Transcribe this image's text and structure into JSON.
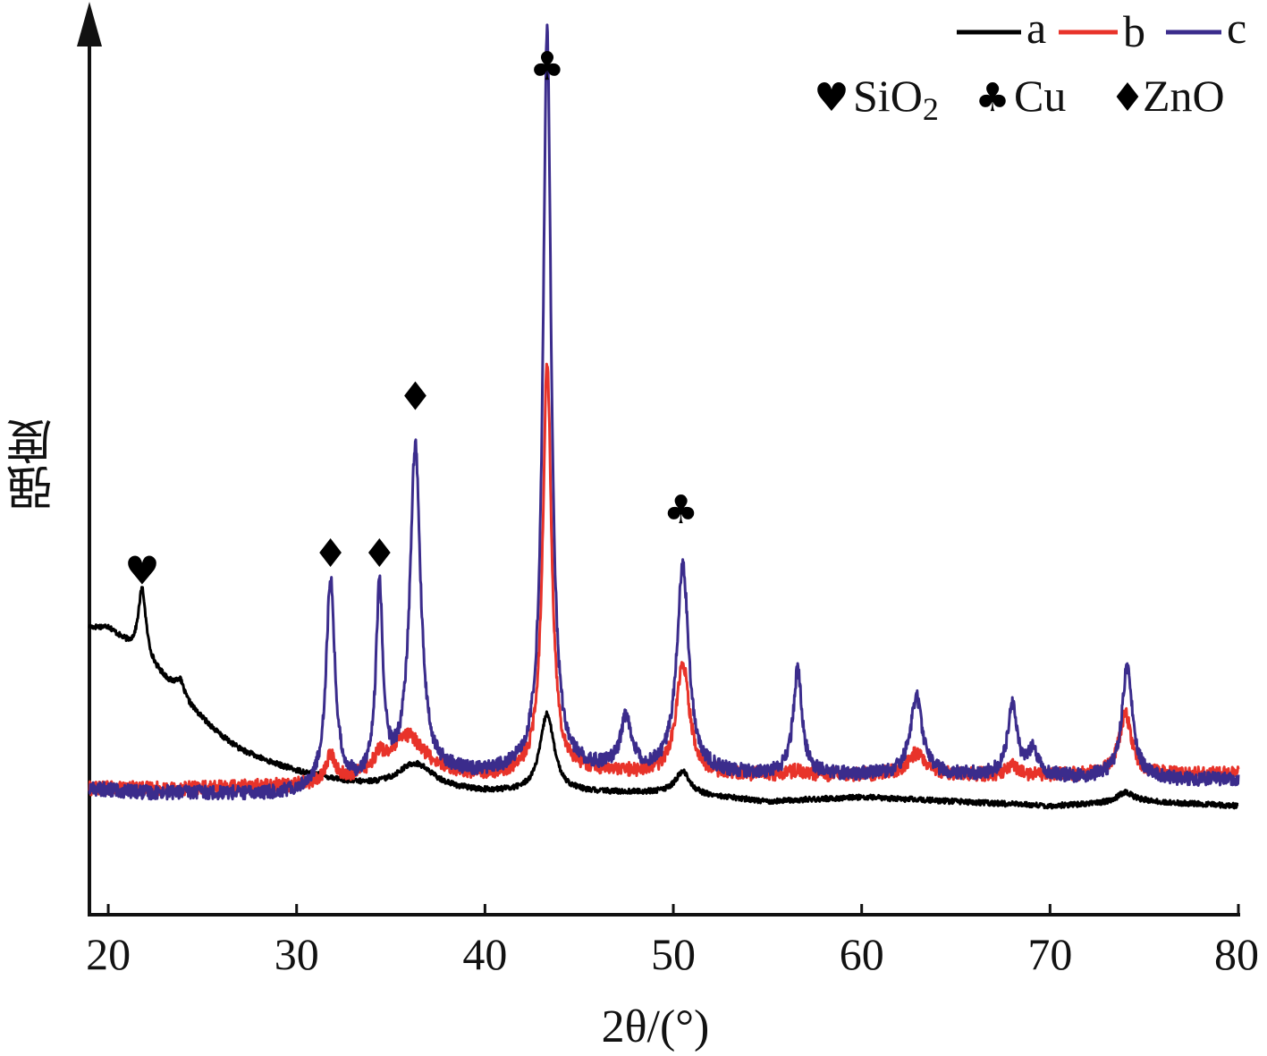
{
  "chart_data": {
    "type": "line",
    "xlabel": "2θ/(°)",
    "ylabel": "强度",
    "xlim": [
      19,
      80
    ],
    "x_ticks": [
      20,
      30,
      40,
      50,
      60,
      70,
      80
    ],
    "tick_labels": [
      "20",
      "30",
      "40",
      "50",
      "60",
      "70",
      "80"
    ],
    "y_ticks_shown": false,
    "grid": false,
    "legend_position": "top-right",
    "legend": {
      "series": [
        {
          "name": "a",
          "color": "#000000"
        },
        {
          "name": "b",
          "color": "#e8332a"
        },
        {
          "name": "c",
          "color": "#3b2c8c"
        }
      ],
      "phases": [
        {
          "symbol": "♥",
          "icon": "heart",
          "label": "SiO",
          "subscript": "2"
        },
        {
          "symbol": "♣",
          "icon": "club",
          "label": "Cu"
        },
        {
          "symbol": "♦",
          "icon": "diamond",
          "label": "ZnO"
        }
      ]
    },
    "peak_markers": [
      {
        "x": 21.8,
        "symbol": "♥",
        "phase": "SiO2",
        "level": 0.38
      },
      {
        "x": 31.8,
        "symbol": "♦",
        "phase": "ZnO",
        "level": 0.4
      },
      {
        "x": 34.4,
        "symbol": "♦",
        "phase": "ZnO",
        "level": 0.4
      },
      {
        "x": 36.3,
        "symbol": "♦",
        "phase": "ZnO",
        "level": 0.58
      },
      {
        "x": 43.3,
        "symbol": "♣",
        "phase": "Cu",
        "level": 0.96
      },
      {
        "x": 50.4,
        "symbol": "♣",
        "phase": "Cu",
        "level": 0.45
      }
    ],
    "series": [
      {
        "name": "a",
        "color": "#000000",
        "baseline": [
          [
            19,
            0.33
          ],
          [
            20,
            0.33
          ],
          [
            21,
            0.31
          ],
          [
            22,
            0.29
          ],
          [
            23,
            0.27
          ],
          [
            24,
            0.245
          ],
          [
            25,
            0.225
          ],
          [
            26,
            0.205
          ],
          [
            27,
            0.19
          ],
          [
            28,
            0.18
          ],
          [
            29,
            0.172
          ],
          [
            30,
            0.165
          ],
          [
            31,
            0.16
          ],
          [
            33,
            0.15
          ],
          [
            35,
            0.145
          ],
          [
            40,
            0.14
          ],
          [
            45,
            0.14
          ],
          [
            50,
            0.14
          ],
          [
            55,
            0.13
          ],
          [
            60,
            0.135
          ],
          [
            65,
            0.13
          ],
          [
            70,
            0.125
          ],
          [
            75,
            0.13
          ],
          [
            80,
            0.125
          ]
        ],
        "peaks": [
          [
            21.8,
            0.08,
            0.25
          ],
          [
            23.8,
            0.02,
            0.3
          ],
          [
            36.3,
            0.03,
            1.2
          ],
          [
            43.3,
            0.09,
            0.45
          ],
          [
            50.5,
            0.025,
            0.45
          ],
          [
            74.0,
            0.012,
            0.5
          ]
        ],
        "noise": 0.003
      },
      {
        "name": "b",
        "color": "#e8332a",
        "baseline": [
          [
            19,
            0.145
          ],
          [
            25,
            0.145
          ],
          [
            30,
            0.148
          ],
          [
            31.5,
            0.15
          ],
          [
            33,
            0.155
          ],
          [
            34,
            0.16
          ],
          [
            38,
            0.16
          ],
          [
            40,
            0.158
          ],
          [
            42,
            0.16
          ],
          [
            45,
            0.165
          ],
          [
            50,
            0.16
          ],
          [
            55,
            0.16
          ],
          [
            60,
            0.16
          ],
          [
            65,
            0.16
          ],
          [
            70,
            0.16
          ],
          [
            75,
            0.16
          ],
          [
            80,
            0.162
          ]
        ],
        "peaks": [
          [
            31.8,
            0.03,
            0.3
          ],
          [
            34.4,
            0.015,
            0.3
          ],
          [
            35.9,
            0.045,
            1.1
          ],
          [
            43.3,
            0.47,
            0.28
          ],
          [
            50.5,
            0.13,
            0.42
          ],
          [
            56.6,
            0.005,
            0.4
          ],
          [
            62.9,
            0.025,
            0.6
          ],
          [
            68.0,
            0.01,
            0.4
          ],
          [
            74.0,
            0.07,
            0.42
          ]
        ],
        "noise": 0.008
      },
      {
        "name": "c",
        "color": "#3b2c8c",
        "baseline": [
          [
            19,
            0.145
          ],
          [
            22,
            0.14
          ],
          [
            25,
            0.14
          ],
          [
            28,
            0.138
          ],
          [
            30,
            0.14
          ],
          [
            32.5,
            0.145
          ],
          [
            34,
            0.15
          ],
          [
            38,
            0.16
          ],
          [
            40,
            0.16
          ],
          [
            45,
            0.165
          ],
          [
            50,
            0.162
          ],
          [
            55,
            0.16
          ],
          [
            60,
            0.16
          ],
          [
            65,
            0.16
          ],
          [
            70,
            0.158
          ],
          [
            75,
            0.155
          ],
          [
            80,
            0.155
          ]
        ],
        "peaks": [
          [
            31.8,
            0.24,
            0.28
          ],
          [
            34.4,
            0.22,
            0.22
          ],
          [
            36.3,
            0.38,
            0.34
          ],
          [
            43.3,
            0.85,
            0.26
          ],
          [
            47.5,
            0.06,
            0.35
          ],
          [
            50.5,
            0.24,
            0.38
          ],
          [
            56.6,
            0.12,
            0.28
          ],
          [
            62.9,
            0.09,
            0.38
          ],
          [
            68.0,
            0.08,
            0.3
          ],
          [
            69.1,
            0.03,
            0.3
          ],
          [
            74.1,
            0.13,
            0.34
          ]
        ],
        "noise": 0.008
      }
    ]
  }
}
